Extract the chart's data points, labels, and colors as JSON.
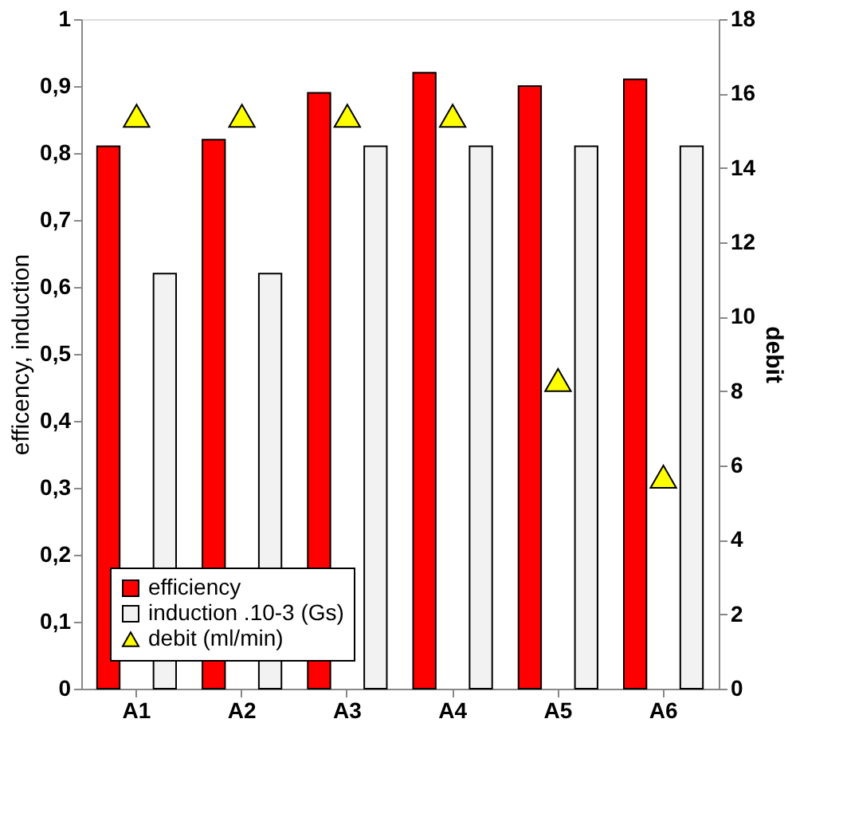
{
  "chart_data": {
    "type": "bar",
    "categories": [
      "A1",
      "A2",
      "A3",
      "A4",
      "A5",
      "A6"
    ],
    "ylabel": "efficency, induction",
    "y2label": "debit",
    "series": [
      {
        "name": "efficiency",
        "color": "#ff0000",
        "values": [
          0.81,
          0.82,
          0.89,
          0.92,
          0.9,
          0.91
        ]
      },
      {
        "name": "induction .10-3 (Gs)",
        "color": "#f2f2f2",
        "values": [
          0.62,
          0.62,
          0.81,
          0.81,
          0.81,
          0.81
        ]
      },
      {
        "name": "debit (ml/min)",
        "type": "scatter",
        "marker": "triangle",
        "axis": "y2",
        "color": "#ffff00",
        "values": [
          15.4,
          15.4,
          15.4,
          15.4,
          8.3,
          5.7
        ]
      }
    ],
    "ylim": [
      0,
      1
    ],
    "yticks": [
      0,
      {
        "value": 0.1,
        "label": "0,1"
      },
      {
        "value": 0.2,
        "label": "0,2"
      },
      {
        "value": 0.3,
        "label": "0,3"
      },
      {
        "value": 0.4,
        "label": "0,4"
      },
      {
        "value": 0.5,
        "label": "0,5"
      },
      {
        "value": 0.6,
        "label": "0,6"
      },
      {
        "value": 0.7,
        "label": "0,7"
      },
      {
        "value": 0.8,
        "label": "0,8"
      },
      {
        "value": 0.9,
        "label": "0,9"
      },
      1
    ],
    "y2lim": [
      0,
      18
    ],
    "y2ticks": [
      0,
      2,
      4,
      6,
      8,
      10,
      12,
      14,
      16,
      18
    ],
    "grid": false,
    "legend": "bottom left"
  }
}
